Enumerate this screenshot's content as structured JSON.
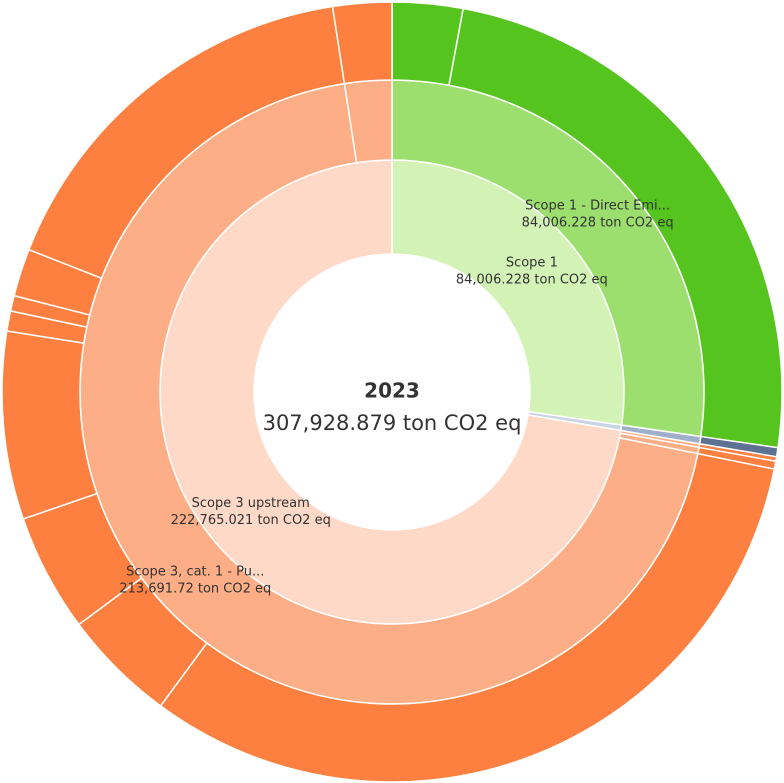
{
  "chart_data": {
    "type": "sunburst",
    "center_title": "2023",
    "total": 307928.879,
    "total_label": "307,928.879 ton CO2 eq",
    "nodes": [
      {
        "name": "Scope 1",
        "value": 84006.228,
        "value_label": "84,006.228 ton CO2 eq",
        "color": "#d3f2b6",
        "children": [
          {
            "name": "Scope 1 - Direct Emi...",
            "value": 84006.228,
            "value_label": "84,006.228 ton CO2 eq",
            "color": "#9ddf6f",
            "children": [
              {
                "value": 9000,
                "color": "#56c41e"
              },
              {
                "value": 75006.228,
                "color": "#56c41e"
              }
            ]
          }
        ]
      },
      {
        "value": 1157.63,
        "color": "#c9d4e3",
        "children": [
          {
            "value": 1157.63,
            "color": "#9eb0c9",
            "children": [
              {
                "value": 1157.63,
                "color": "#5d7193"
              }
            ]
          }
        ]
      },
      {
        "name": "Scope 3 upstream",
        "value": 222765.021,
        "value_label": "222,765.021 ton CO2 eq",
        "color": "#fed9c8",
        "children": [
          {
            "value": 573.301,
            "color": "#fdae86",
            "children": [
              {
                "value": 573.301,
                "color": "#fd8040"
              }
            ]
          },
          {
            "value": 1000,
            "color": "#fdae86",
            "children": [
              {
                "value": 1000,
                "color": "#fd8040"
              }
            ]
          },
          {
            "name": "Scope 3, cat. 1 - Pu...",
            "value": 213691.72,
            "value_label": "213,691.72 ton CO2 eq",
            "color": "#fdae86",
            "children": [
              {
                "value": 98366,
                "color": "#fd8040"
              },
              {
                "value": 14541,
                "color": "#fd8040"
              },
              {
                "value": 15054,
                "color": "#fd8040"
              },
              {
                "value": 23950,
                "color": "#fd8040"
              },
              {
                "value": 2566,
                "color": "#fd8040"
              },
              {
                "value": 1967,
                "color": "#fd8040"
              },
              {
                "value": 6073,
                "color": "#fd8040"
              },
              {
                "value": 51174.72,
                "color": "#fd8040"
              }
            ]
          },
          {
            "value": 7500,
            "color": "#fdae86",
            "children": [
              {
                "value": 7500,
                "color": "#fd8040"
              }
            ]
          }
        ]
      }
    ]
  }
}
